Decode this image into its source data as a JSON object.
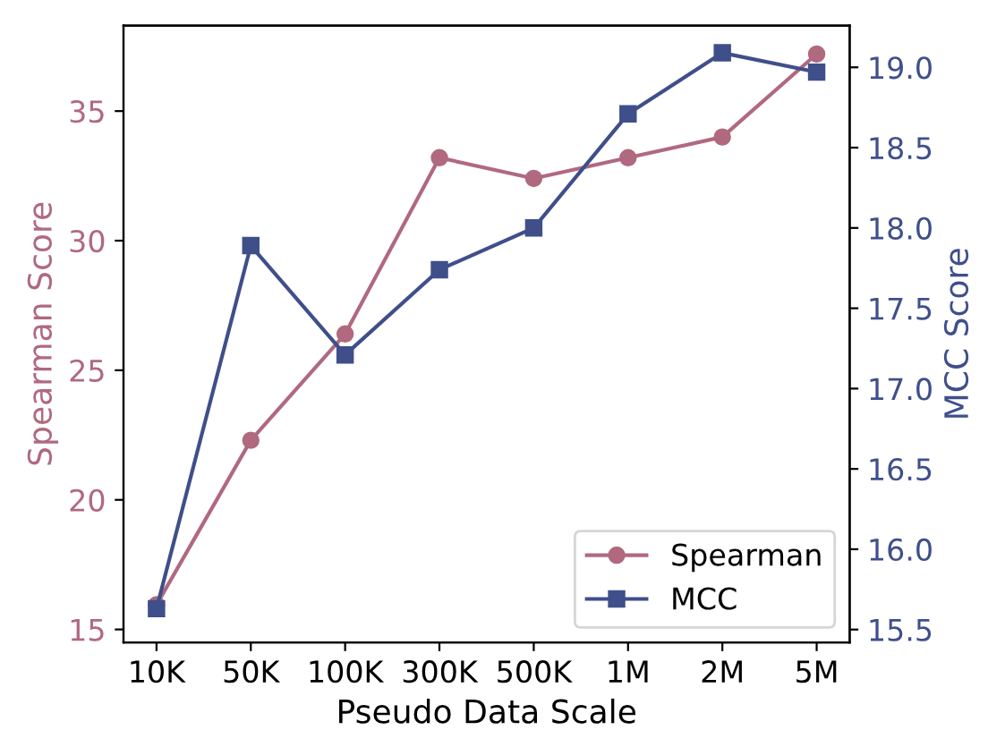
{
  "chart_data": {
    "type": "line",
    "xlabel": "Pseudo Data Scale",
    "ylabel": "Spearman Score",
    "y2label": "MCC Score",
    "categories": [
      "10K",
      "50K",
      "100K",
      "300K",
      "500K",
      "1M",
      "2M",
      "5M"
    ],
    "series": [
      {
        "name": "Spearman",
        "color": "#b0697f",
        "marker": "circle",
        "values": [
          15.95,
          22.3,
          26.4,
          33.2,
          32.4,
          33.2,
          34.0,
          37.2
        ]
      },
      {
        "name": "MCC",
        "color": "#3f4f8a",
        "marker": "square",
        "axis": "y2",
        "values": [
          15.63,
          17.89,
          17.21,
          17.74,
          18.0,
          18.71,
          19.09,
          18.97
        ]
      }
    ],
    "ylim": [
      14.5,
      38.3
    ],
    "yticks": [
      15,
      20,
      25,
      30,
      35
    ],
    "y2lim": [
      15.42,
      19.26
    ],
    "y2ticks": [
      {
        "value": 15.5,
        "label": "15.5"
      },
      {
        "value": 16.0,
        "label": "16.0"
      },
      {
        "value": 16.5,
        "label": "16.5"
      },
      {
        "value": 17.0,
        "label": "17.0"
      },
      {
        "value": 17.5,
        "label": "17.5"
      },
      {
        "value": 18.0,
        "label": "18.0"
      },
      {
        "value": 18.5,
        "label": "18.5"
      },
      {
        "value": 19.0,
        "label": "19.0"
      }
    ],
    "legend": "bottom right",
    "grid": false,
    "line_style": "solid"
  }
}
